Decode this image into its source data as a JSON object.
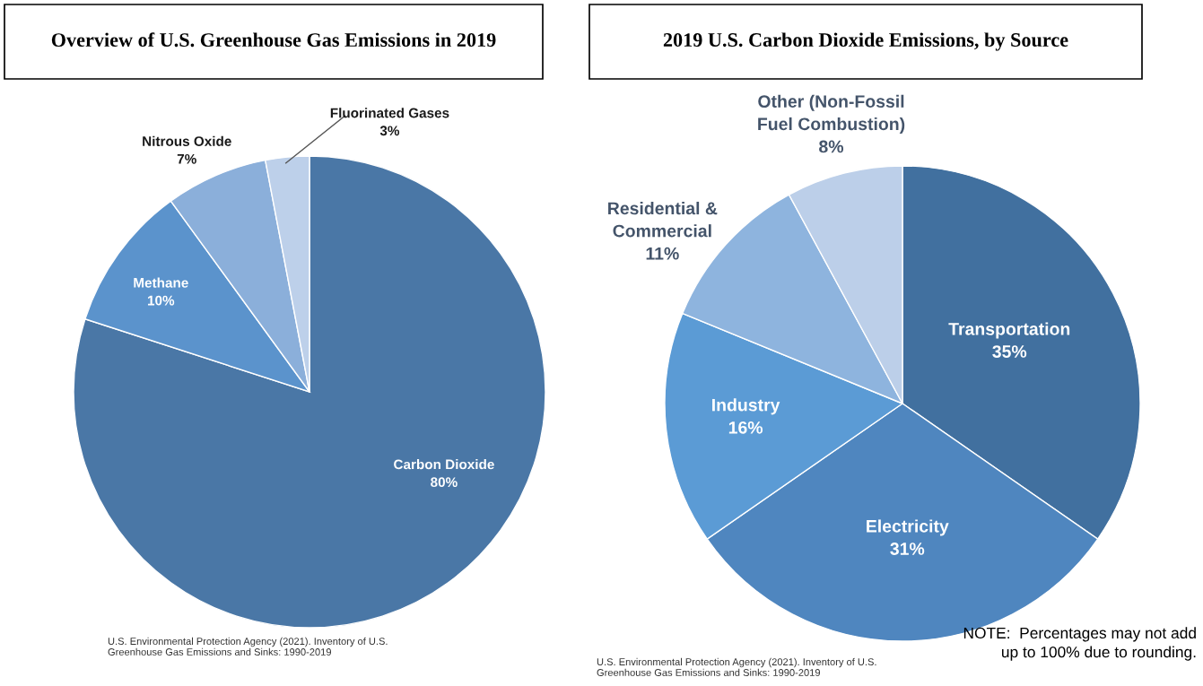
{
  "chart_data": [
    {
      "type": "pie",
      "title": "Overview of U.S. Greenhouse Gas Emissions in 2019",
      "categories": [
        "Carbon Dioxide",
        "Methane",
        "Nitrous Oxide",
        "Fluorinated Gases"
      ],
      "values": [
        80,
        10,
        7,
        3
      ],
      "value_labels": [
        "80%",
        "10%",
        "7%",
        "3%"
      ],
      "colors": [
        "#4a77a6",
        "#5b93cc",
        "#8bafda",
        "#bdd0ea"
      ],
      "annotations": [
        "U.S. Environmental Protection Agency (2021). Inventory of U.S.\nGreenhouse Gas Emissions and Sinks: 1990-2019"
      ]
    },
    {
      "type": "pie",
      "title": "2019 U.S. Carbon Dioxide Emissions, by Source",
      "categories": [
        "Transportation",
        "Electricity",
        "Industry",
        "Residential &\nCommercial",
        "Other (Non-Fossil\nFuel Combustion)"
      ],
      "values": [
        35,
        31,
        16,
        11,
        8
      ],
      "value_labels": [
        "35%",
        "31%",
        "16%",
        "11%",
        "8%"
      ],
      "colors": [
        "#41709f",
        "#4f86bf",
        "#5b9bd5",
        "#8eb4de",
        "#bccfe9"
      ],
      "annotations": [
        "U.S. Environmental Protection Agency (2021). Inventory of U.S.\nGreenhouse Gas Emissions and Sinks: 1990-2019",
        "NOTE:  Percentages may not add\nup to 100% due to rounding."
      ]
    }
  ]
}
